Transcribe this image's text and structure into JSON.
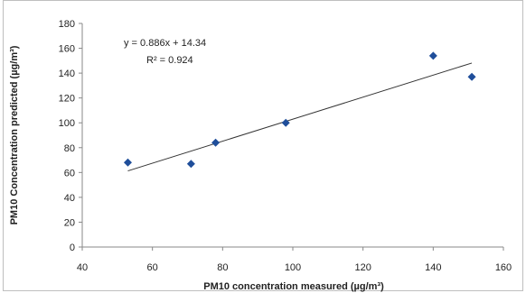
{
  "chart_data": {
    "type": "scatter",
    "title": "",
    "xlabel": "PM10 concentration measured (µg/m³)",
    "ylabel": "PM10 Concentration predicted (µg/m³)",
    "xlim": [
      40,
      160
    ],
    "ylim": [
      0,
      180
    ],
    "x_ticks": [
      40,
      60,
      80,
      100,
      120,
      140,
      160
    ],
    "y_ticks": [
      0,
      20,
      40,
      60,
      80,
      100,
      120,
      140,
      160,
      180
    ],
    "grid": false,
    "legend": "none",
    "series": [
      {
        "color": "#1f4e9a",
        "marker": "diamond",
        "points": [
          {
            "x": 53,
            "y": 68
          },
          {
            "x": 71,
            "y": 67
          },
          {
            "x": 78,
            "y": 84
          },
          {
            "x": 98,
            "y": 100
          },
          {
            "x": 140,
            "y": 154
          },
          {
            "x": 151,
            "y": 137
          }
        ]
      }
    ],
    "trendline": {
      "slope": 0.886,
      "intercept": 14.34,
      "x_range": [
        53,
        151
      ],
      "color": "#333333"
    },
    "annotations": {
      "equation": "y = 0.886x + 14.34",
      "r_squared": "R² = 0.924"
    }
  }
}
